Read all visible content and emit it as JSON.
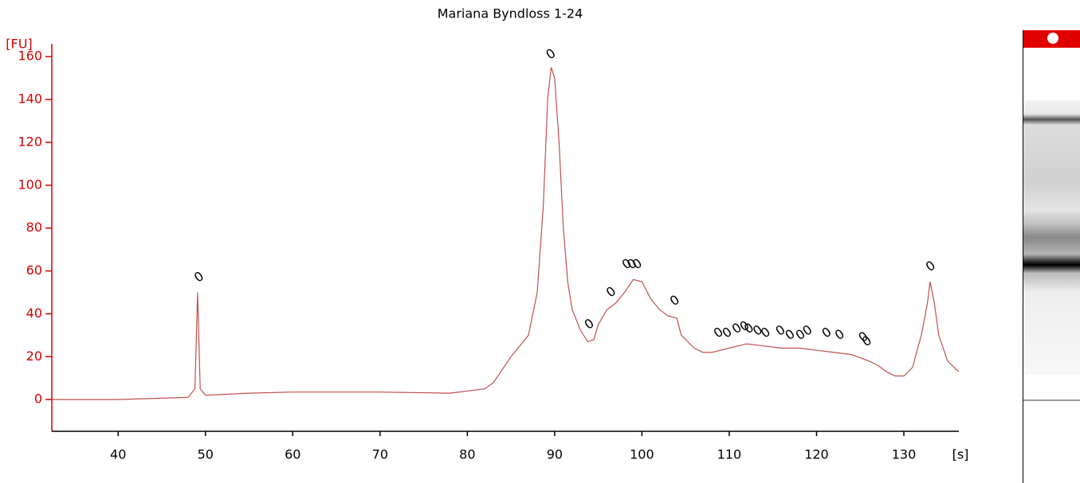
{
  "chart_data": {
    "type": "line",
    "title": "Mariana Byndloss 1-24",
    "y_label": "[FU]",
    "x_label": "[s]",
    "xlim": [
      32.4,
      136.3
    ],
    "ylim": [
      -14.8,
      166
    ],
    "xticks": [
      40,
      50,
      60,
      70,
      80,
      90,
      100,
      110,
      120,
      130
    ],
    "yticks": [
      0,
      20,
      40,
      60,
      80,
      100,
      120,
      140,
      160
    ],
    "series": [
      {
        "color": "#c0504d",
        "x": [
          32.4,
          40,
          48,
          48.8,
          49.1,
          49.4,
          50,
          55,
          60,
          70,
          78,
          82,
          83,
          84,
          85,
          86,
          87,
          88,
          88.7,
          89.2,
          89.6,
          90,
          90.5,
          91,
          91.5,
          92,
          93,
          93.8,
          94.5,
          95,
          96,
          97,
          98,
          99,
          100,
          101,
          102,
          103,
          104,
          104.5,
          105,
          106,
          107,
          108,
          110,
          112,
          114,
          116,
          118,
          120,
          122,
          124,
          126,
          127,
          128,
          129,
          130,
          131,
          132,
          132.7,
          133,
          133.5,
          134,
          135,
          136,
          136.3
        ],
        "values": [
          0,
          0,
          1,
          5,
          50,
          5,
          2,
          3,
          3.5,
          3.5,
          3,
          5,
          8,
          14,
          20,
          25,
          30,
          50,
          90,
          140,
          155,
          150,
          120,
          80,
          55,
          42,
          32,
          27,
          28,
          35,
          42,
          45,
          50,
          56,
          55,
          47,
          42,
          39,
          38,
          30,
          28,
          24,
          22,
          22,
          24,
          26,
          25,
          24,
          24,
          23,
          22,
          21,
          18,
          16,
          13,
          11,
          11,
          15,
          30,
          45,
          55,
          45,
          30,
          18,
          14,
          13
        ]
      }
    ],
    "peak_labels": {
      "label": "0",
      "x": [
        49.3,
        89.6,
        94,
        96.5,
        98.3,
        98.9,
        99.5,
        103.8,
        108.8,
        109.8,
        110.9,
        111.8,
        112.3,
        113.3,
        114.2,
        115.9,
        117,
        118.2,
        119,
        121.2,
        122.7,
        125.4,
        125.8,
        133.1
      ],
      "y": [
        57,
        161,
        35,
        50,
        63,
        63,
        63,
        46,
        31,
        31,
        33,
        34,
        33,
        32,
        31,
        32,
        30,
        30,
        32,
        31,
        30,
        29,
        27,
        62
      ]
    }
  }
}
